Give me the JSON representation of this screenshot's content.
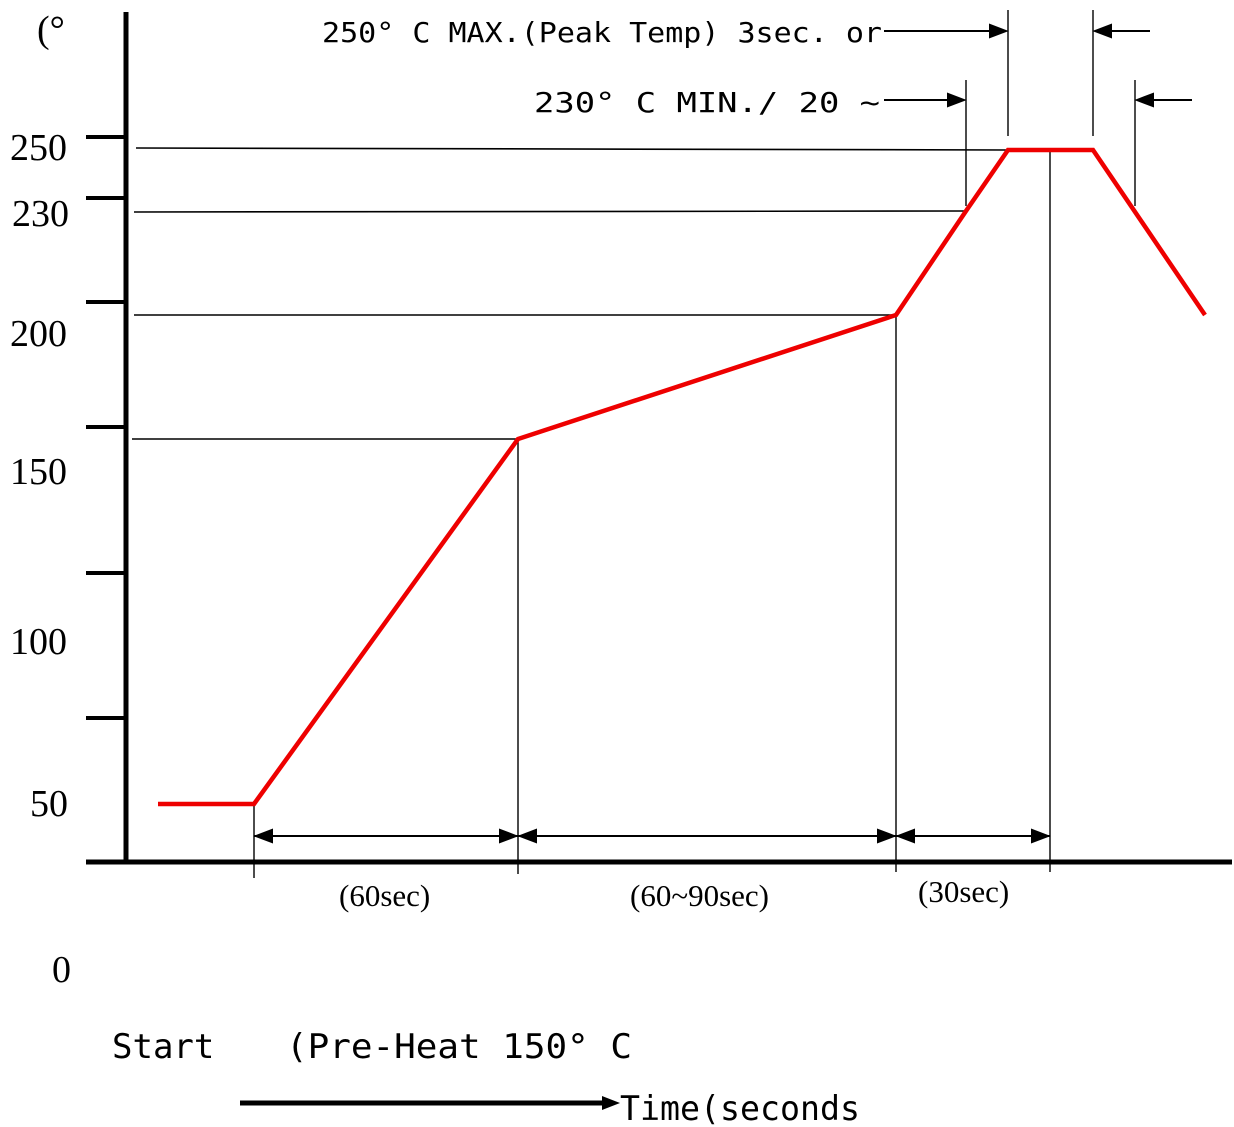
{
  "chart_data": {
    "type": "line",
    "title": "",
    "ylabel": "(°",
    "xlabel": "Time(seconds",
    "y_ticks": [
      "0",
      "50",
      "100",
      "150",
      "200",
      "230",
      "250"
    ],
    "series": [
      {
        "color": "#ee0000",
        "x": [
          0,
          60,
          120,
          210,
          240,
          255,
          285,
          300
        ],
        "y": [
          50,
          50,
          150,
          200,
          230,
          250,
          250,
          200
        ]
      }
    ],
    "annotations": {
      "peak": "250° C MAX.(Peak Temp) 3sec. or",
      "min": "230° C  MIN./  20 ~",
      "preheat_duration": "(60sec)",
      "soak_duration": "(60~90sec)",
      "reflow_duration": "(30sec)",
      "start": "Start",
      "preheat": "(Pre-Heat  150° C"
    },
    "grid": false
  }
}
